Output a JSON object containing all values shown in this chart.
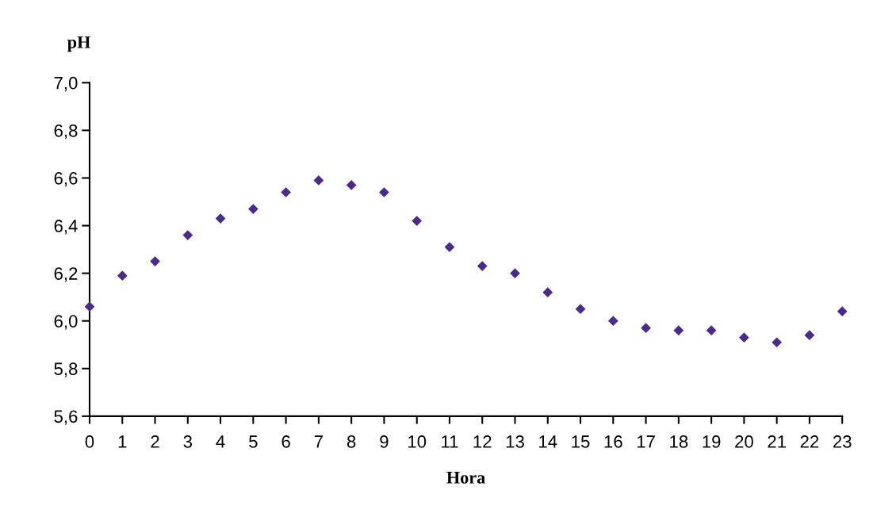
{
  "chart_data": {
    "type": "scatter",
    "xlabel": "Hora",
    "ylabel": "pH",
    "categories": [
      "0",
      "1",
      "2",
      "3",
      "4",
      "5",
      "6",
      "7",
      "8",
      "9",
      "10",
      "11",
      "12",
      "13",
      "14",
      "15",
      "16",
      "17",
      "18",
      "19",
      "20",
      "21",
      "22",
      "23"
    ],
    "series": [
      {
        "color": "#4b2a8c",
        "values": [
          6.06,
          6.19,
          6.25,
          6.36,
          6.43,
          6.47,
          6.54,
          6.59,
          6.57,
          6.54,
          6.42,
          6.31,
          6.23,
          6.2,
          6.12,
          6.05,
          6.0,
          5.97,
          5.96,
          5.96,
          5.93,
          5.91,
          5.94,
          6.04
        ]
      }
    ],
    "ylim": [
      5.6,
      7.0
    ],
    "yticks": [
      {
        "value": 5.6,
        "label": "5,6"
      },
      {
        "value": 5.8,
        "label": "5,8"
      },
      {
        "value": 6.0,
        "label": "6,0"
      },
      {
        "value": 6.2,
        "label": "6,2"
      },
      {
        "value": 6.4,
        "label": "6,4"
      },
      {
        "value": 6.6,
        "label": "6,6"
      },
      {
        "value": 6.8,
        "label": "6,8"
      },
      {
        "value": 7.0,
        "label": "7,0"
      }
    ],
    "grid": false,
    "legend": false,
    "marker": "diamond"
  }
}
